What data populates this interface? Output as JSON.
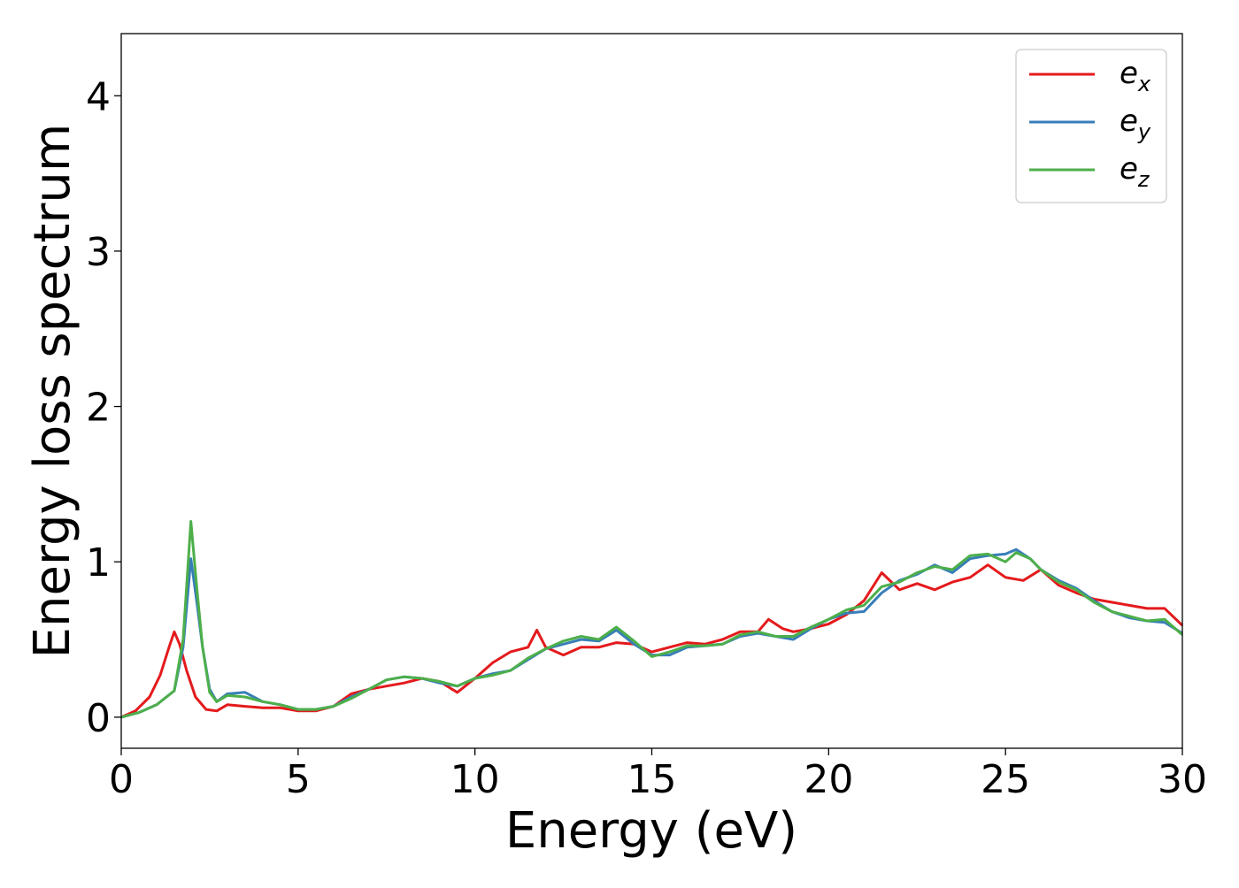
{
  "chart_data": {
    "type": "line",
    "xlabel": "Energy (eV)",
    "ylabel": "Energy loss spectrum",
    "xlim": [
      0,
      30
    ],
    "ylim": [
      -0.2,
      4.4
    ],
    "xticks": [
      0,
      5,
      10,
      15,
      20,
      25,
      30
    ],
    "yticks": [
      0,
      1,
      2,
      3,
      4
    ],
    "xtick_labels": [
      "0",
      "5",
      "10",
      "15",
      "20",
      "25",
      "30"
    ],
    "ytick_labels": [
      "0",
      "1",
      "2",
      "3",
      "4"
    ],
    "grid": false,
    "legend_position": "top-right",
    "series": [
      {
        "name": "e",
        "subscript": "x",
        "color": "#e41a1c",
        "points": [
          [
            0,
            0
          ],
          [
            0.4,
            0.04
          ],
          [
            0.8,
            0.13
          ],
          [
            1.1,
            0.27
          ],
          [
            1.35,
            0.45
          ],
          [
            1.5,
            0.55
          ],
          [
            1.65,
            0.47
          ],
          [
            1.85,
            0.3
          ],
          [
            2.1,
            0.13
          ],
          [
            2.4,
            0.05
          ],
          [
            2.7,
            0.04
          ],
          [
            3.0,
            0.08
          ],
          [
            3.5,
            0.07
          ],
          [
            4.0,
            0.06
          ],
          [
            4.5,
            0.06
          ],
          [
            5.0,
            0.04
          ],
          [
            5.5,
            0.04
          ],
          [
            6.0,
            0.07
          ],
          [
            6.5,
            0.15
          ],
          [
            7.0,
            0.18
          ],
          [
            7.5,
            0.2
          ],
          [
            8.0,
            0.22
          ],
          [
            8.5,
            0.25
          ],
          [
            9.0,
            0.23
          ],
          [
            9.5,
            0.16
          ],
          [
            10.0,
            0.25
          ],
          [
            10.5,
            0.35
          ],
          [
            11.0,
            0.42
          ],
          [
            11.5,
            0.45
          ],
          [
            11.75,
            0.56
          ],
          [
            12.0,
            0.45
          ],
          [
            12.5,
            0.4
          ],
          [
            13.0,
            0.45
          ],
          [
            13.5,
            0.45
          ],
          [
            14.0,
            0.48
          ],
          [
            14.5,
            0.47
          ],
          [
            15.0,
            0.42
          ],
          [
            15.5,
            0.45
          ],
          [
            16.0,
            0.48
          ],
          [
            16.5,
            0.47
          ],
          [
            17.0,
            0.5
          ],
          [
            17.5,
            0.55
          ],
          [
            18.0,
            0.55
          ],
          [
            18.3,
            0.63
          ],
          [
            18.7,
            0.57
          ],
          [
            19.0,
            0.55
          ],
          [
            19.5,
            0.57
          ],
          [
            20.0,
            0.6
          ],
          [
            20.5,
            0.66
          ],
          [
            21.0,
            0.75
          ],
          [
            21.5,
            0.93
          ],
          [
            22.0,
            0.82
          ],
          [
            22.5,
            0.86
          ],
          [
            23.0,
            0.82
          ],
          [
            23.5,
            0.87
          ],
          [
            24.0,
            0.9
          ],
          [
            24.5,
            0.98
          ],
          [
            25.0,
            0.9
          ],
          [
            25.5,
            0.88
          ],
          [
            26.0,
            0.95
          ],
          [
            26.5,
            0.85
          ],
          [
            27.0,
            0.8
          ],
          [
            27.5,
            0.76
          ],
          [
            28.0,
            0.74
          ],
          [
            28.5,
            0.72
          ],
          [
            29.0,
            0.7
          ],
          [
            29.5,
            0.7
          ],
          [
            30.0,
            0.59
          ]
        ]
      },
      {
        "name": "e",
        "subscript": "y",
        "color": "#377eb8",
        "points": [
          [
            0,
            0
          ],
          [
            0.5,
            0.03
          ],
          [
            1.0,
            0.08
          ],
          [
            1.5,
            0.17
          ],
          [
            1.75,
            0.45
          ],
          [
            1.97,
            1.02
          ],
          [
            2.15,
            0.72
          ],
          [
            2.3,
            0.45
          ],
          [
            2.5,
            0.18
          ],
          [
            2.7,
            0.1
          ],
          [
            3.0,
            0.15
          ],
          [
            3.5,
            0.16
          ],
          [
            4.0,
            0.1
          ],
          [
            4.5,
            0.08
          ],
          [
            5.0,
            0.05
          ],
          [
            5.5,
            0.05
          ],
          [
            6.0,
            0.07
          ],
          [
            6.5,
            0.13
          ],
          [
            7.0,
            0.18
          ],
          [
            7.5,
            0.24
          ],
          [
            8.0,
            0.26
          ],
          [
            8.5,
            0.25
          ],
          [
            9.0,
            0.22
          ],
          [
            9.5,
            0.2
          ],
          [
            10.0,
            0.25
          ],
          [
            10.5,
            0.28
          ],
          [
            11.0,
            0.3
          ],
          [
            11.5,
            0.37
          ],
          [
            12.0,
            0.44
          ],
          [
            12.5,
            0.47
          ],
          [
            13.0,
            0.5
          ],
          [
            13.5,
            0.49
          ],
          [
            14.0,
            0.56
          ],
          [
            14.5,
            0.47
          ],
          [
            15.0,
            0.4
          ],
          [
            15.5,
            0.4
          ],
          [
            16.0,
            0.45
          ],
          [
            16.5,
            0.46
          ],
          [
            17.0,
            0.47
          ],
          [
            17.5,
            0.52
          ],
          [
            18.0,
            0.54
          ],
          [
            18.5,
            0.52
          ],
          [
            19.0,
            0.5
          ],
          [
            19.5,
            0.57
          ],
          [
            20.0,
            0.63
          ],
          [
            20.5,
            0.67
          ],
          [
            21.0,
            0.68
          ],
          [
            21.5,
            0.8
          ],
          [
            22.0,
            0.88
          ],
          [
            22.5,
            0.92
          ],
          [
            23.0,
            0.98
          ],
          [
            23.5,
            0.93
          ],
          [
            24.0,
            1.02
          ],
          [
            24.5,
            1.04
          ],
          [
            25.0,
            1.05
          ],
          [
            25.3,
            1.08
          ],
          [
            25.7,
            1.02
          ],
          [
            26.0,
            0.95
          ],
          [
            26.5,
            0.88
          ],
          [
            27.0,
            0.83
          ],
          [
            27.5,
            0.75
          ],
          [
            28.0,
            0.68
          ],
          [
            28.5,
            0.64
          ],
          [
            29.0,
            0.62
          ],
          [
            29.5,
            0.61
          ],
          [
            30.0,
            0.54
          ]
        ]
      },
      {
        "name": "e",
        "subscript": "z",
        "color": "#4daf4a",
        "points": [
          [
            0,
            0
          ],
          [
            0.5,
            0.03
          ],
          [
            1.0,
            0.08
          ],
          [
            1.5,
            0.17
          ],
          [
            1.75,
            0.5
          ],
          [
            1.97,
            1.26
          ],
          [
            2.15,
            0.8
          ],
          [
            2.3,
            0.45
          ],
          [
            2.5,
            0.16
          ],
          [
            2.7,
            0.1
          ],
          [
            3.0,
            0.14
          ],
          [
            3.5,
            0.13
          ],
          [
            4.0,
            0.1
          ],
          [
            4.5,
            0.08
          ],
          [
            5.0,
            0.05
          ],
          [
            5.5,
            0.05
          ],
          [
            6.0,
            0.07
          ],
          [
            6.5,
            0.12
          ],
          [
            7.0,
            0.18
          ],
          [
            7.5,
            0.24
          ],
          [
            8.0,
            0.26
          ],
          [
            8.5,
            0.25
          ],
          [
            9.0,
            0.23
          ],
          [
            9.5,
            0.2
          ],
          [
            10.0,
            0.25
          ],
          [
            10.5,
            0.27
          ],
          [
            11.0,
            0.3
          ],
          [
            11.5,
            0.38
          ],
          [
            12.0,
            0.44
          ],
          [
            12.5,
            0.49
          ],
          [
            13.0,
            0.52
          ],
          [
            13.5,
            0.5
          ],
          [
            14.0,
            0.58
          ],
          [
            14.5,
            0.49
          ],
          [
            15.0,
            0.39
          ],
          [
            15.5,
            0.42
          ],
          [
            16.0,
            0.46
          ],
          [
            16.5,
            0.46
          ],
          [
            17.0,
            0.47
          ],
          [
            17.5,
            0.53
          ],
          [
            18.0,
            0.55
          ],
          [
            18.5,
            0.52
          ],
          [
            19.0,
            0.52
          ],
          [
            19.5,
            0.58
          ],
          [
            20.0,
            0.63
          ],
          [
            20.5,
            0.69
          ],
          [
            21.0,
            0.72
          ],
          [
            21.5,
            0.84
          ],
          [
            22.0,
            0.87
          ],
          [
            22.5,
            0.93
          ],
          [
            23.0,
            0.97
          ],
          [
            23.5,
            0.95
          ],
          [
            24.0,
            1.04
          ],
          [
            24.5,
            1.05
          ],
          [
            25.0,
            1.0
          ],
          [
            25.3,
            1.06
          ],
          [
            25.7,
            1.02
          ],
          [
            26.0,
            0.95
          ],
          [
            26.5,
            0.87
          ],
          [
            27.0,
            0.82
          ],
          [
            27.5,
            0.74
          ],
          [
            28.0,
            0.68
          ],
          [
            28.5,
            0.65
          ],
          [
            29.0,
            0.62
          ],
          [
            29.5,
            0.63
          ],
          [
            30.0,
            0.53
          ]
        ]
      }
    ]
  }
}
